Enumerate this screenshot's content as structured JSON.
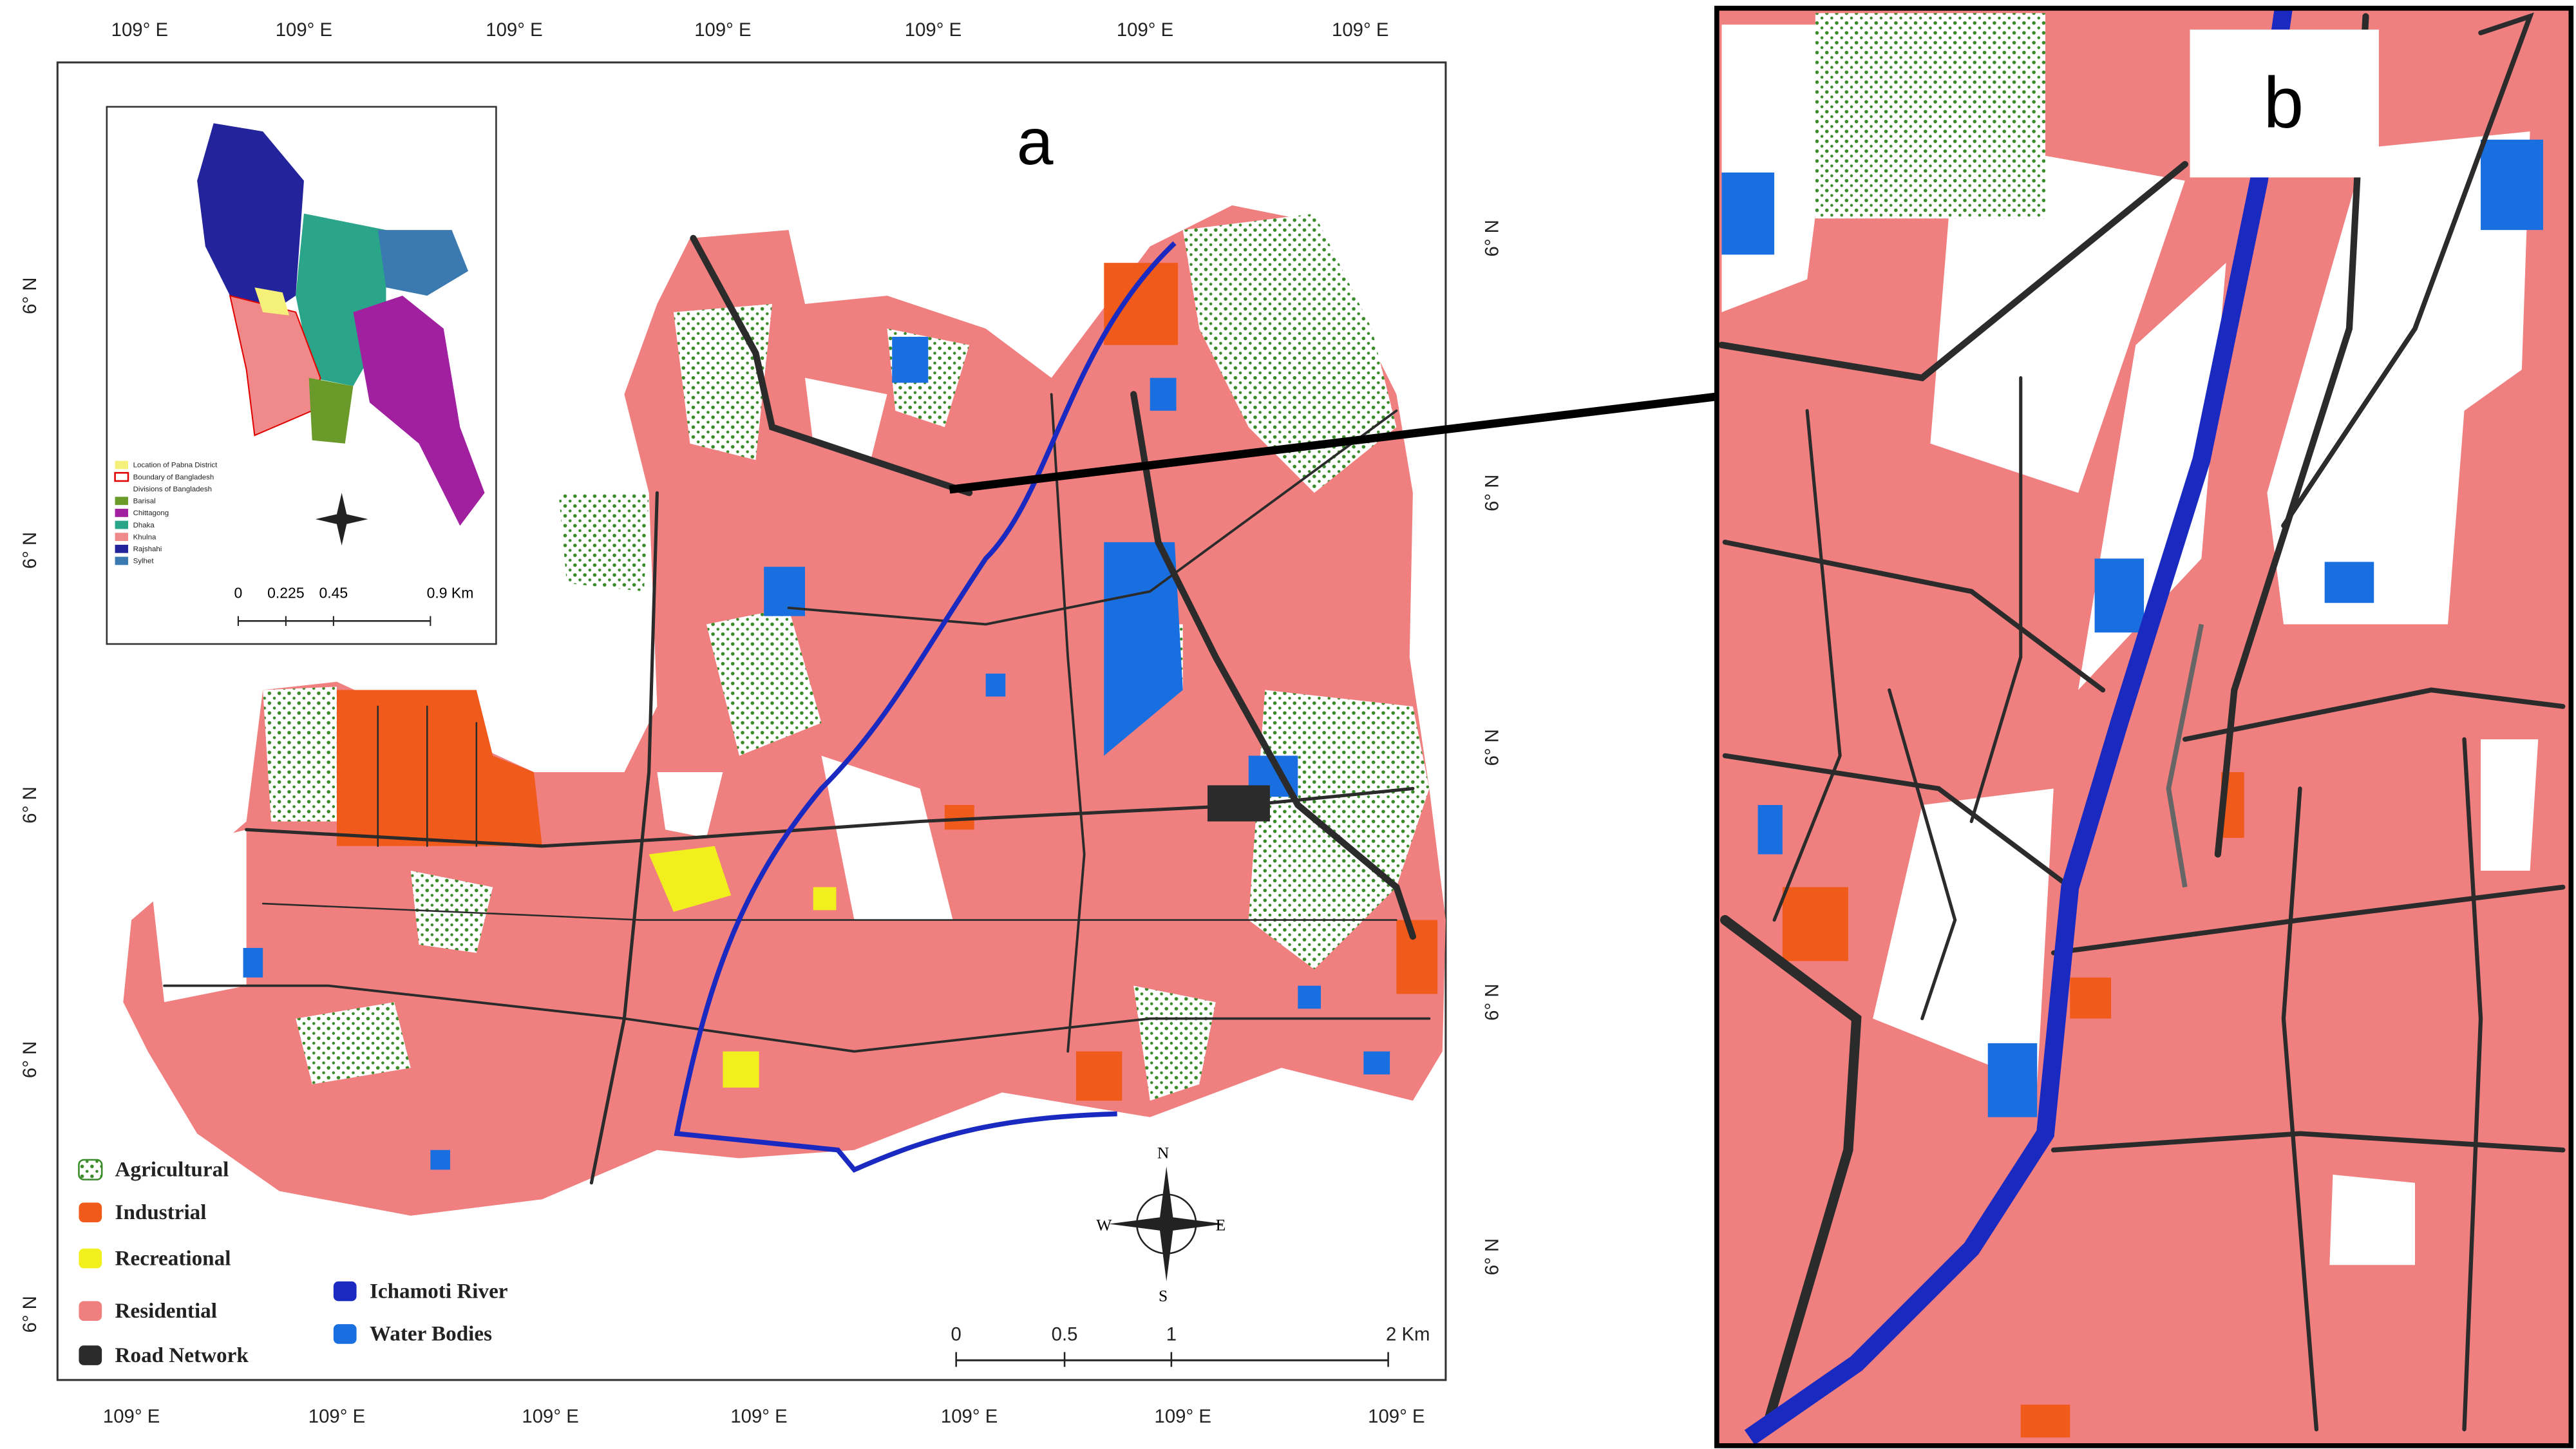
{
  "map_a": {
    "label": "a",
    "top_labels": [
      "109° E",
      "109° E",
      "109° E",
      "109° E",
      "109° E",
      "109° E",
      "109° E"
    ],
    "bottom_labels": [
      "109° E",
      "109° E",
      "109° E",
      "109° E",
      "109° E",
      "109° E",
      "109° E"
    ],
    "left_labels": [
      "6° N",
      "6° N",
      "6° N",
      "6° N",
      "6° N"
    ],
    "right_labels": [
      "6° N",
      "6° N",
      "6° N",
      "6° N",
      "6° N"
    ],
    "legend": [
      "Agricultural",
      "Industrial",
      "Recreational",
      "Residential",
      "Road Network",
      "Ichamoti River",
      "Water Bodies"
    ],
    "scale_labels": [
      "0",
      "0.5",
      "1",
      "2 Km"
    ],
    "compass": [
      "N",
      "E",
      "S",
      "W"
    ]
  },
  "inset": {
    "legend": [
      "Location of Pabna District",
      "Boundary of Bangladesh",
      "Divisions of Bangladesh",
      "Barisal",
      "Chittagong",
      "Dhaka",
      "Khulna",
      "Rajshahi",
      "Sylhet"
    ],
    "scale_labels": [
      "0",
      "0.225",
      "0.45",
      "0.9 Km"
    ]
  },
  "map_b": {
    "label": "b"
  }
}
